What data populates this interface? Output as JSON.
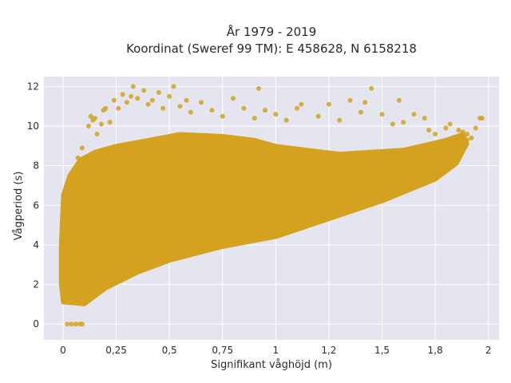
{
  "chart_data": {
    "type": "scatter",
    "title_line1": "År 1979 - 2019",
    "title_line2": "Koordinat (Sweref 99 TM): E 458628, N 6158218",
    "xlabel": "Signifikant våghöjd (m)",
    "ylabel": "Vågperiod (s)",
    "xlim": [
      -0.09,
      2.05
    ],
    "ylim": [
      -0.8,
      12.5
    ],
    "xticks": [
      0,
      0.25,
      0.5,
      0.75,
      1,
      1.25,
      1.5,
      1.75,
      2
    ],
    "xtick_labels": [
      "0",
      "0,25",
      "0,5",
      "0,75",
      "1",
      "1,2",
      "1,5",
      "1,8",
      "2"
    ],
    "yticks": [
      0,
      2,
      4,
      6,
      8,
      10,
      12
    ],
    "ytick_labels": [
      "0",
      "2",
      "4",
      "6",
      "8",
      "10",
      "12"
    ],
    "grid": true,
    "legend": "none",
    "marker_color": "#d4a21f",
    "plot_background": "#e5e5ef",
    "points": [
      [
        0.02,
        0
      ],
      [
        0.04,
        0
      ],
      [
        0.06,
        0
      ],
      [
        0.08,
        0
      ],
      [
        0.09,
        0
      ],
      [
        0.02,
        1.8
      ],
      [
        0.02,
        2.4
      ],
      [
        0.02,
        3.0
      ],
      [
        0.03,
        2.7
      ],
      [
        0.05,
        1.2
      ],
      [
        0.06,
        1.6
      ],
      [
        0.08,
        1.1
      ],
      [
        0.1,
        1.4
      ],
      [
        0.12,
        1.9
      ],
      [
        0.05,
        7.5
      ],
      [
        0.07,
        8.4
      ],
      [
        0.08,
        7.9
      ],
      [
        0.09,
        8.9
      ],
      [
        0.1,
        8.2
      ],
      [
        0.12,
        10.0
      ],
      [
        0.13,
        10.5
      ],
      [
        0.14,
        10.3
      ],
      [
        0.15,
        10.4
      ],
      [
        0.16,
        9.6
      ],
      [
        0.18,
        10.1
      ],
      [
        0.19,
        10.8
      ],
      [
        0.2,
        10.9
      ],
      [
        0.22,
        10.2
      ],
      [
        0.24,
        11.3
      ],
      [
        0.26,
        10.9
      ],
      [
        0.28,
        11.6
      ],
      [
        0.3,
        11.2
      ],
      [
        0.32,
        11.5
      ],
      [
        0.33,
        12.0
      ],
      [
        0.35,
        11.4
      ],
      [
        0.38,
        11.8
      ],
      [
        0.4,
        11.1
      ],
      [
        0.42,
        11.3
      ],
      [
        0.45,
        11.7
      ],
      [
        0.47,
        10.9
      ],
      [
        0.5,
        11.5
      ],
      [
        0.52,
        12.0
      ],
      [
        0.55,
        11.0
      ],
      [
        0.58,
        11.3
      ],
      [
        0.6,
        10.7
      ],
      [
        0.65,
        11.2
      ],
      [
        0.7,
        10.8
      ],
      [
        0.75,
        10.5
      ],
      [
        0.8,
        11.4
      ],
      [
        0.85,
        10.9
      ],
      [
        0.9,
        10.4
      ],
      [
        0.95,
        10.8
      ],
      [
        0.92,
        11.9
      ],
      [
        1.0,
        10.6
      ],
      [
        1.05,
        10.3
      ],
      [
        1.1,
        10.9
      ],
      [
        1.12,
        11.1
      ],
      [
        1.2,
        10.5
      ],
      [
        1.25,
        11.1
      ],
      [
        1.3,
        10.3
      ],
      [
        1.35,
        11.3
      ],
      [
        1.4,
        10.7
      ],
      [
        1.42,
        11.2
      ],
      [
        1.45,
        11.9
      ],
      [
        1.5,
        10.6
      ],
      [
        1.55,
        10.1
      ],
      [
        1.58,
        11.3
      ],
      [
        1.6,
        10.2
      ],
      [
        1.65,
        10.6
      ],
      [
        1.7,
        10.4
      ],
      [
        1.72,
        9.8
      ],
      [
        1.75,
        9.6
      ],
      [
        1.8,
        9.9
      ],
      [
        1.82,
        10.1
      ],
      [
        1.86,
        9.8
      ],
      [
        1.88,
        9.7
      ],
      [
        1.9,
        9.6
      ],
      [
        1.92,
        9.4
      ],
      [
        1.94,
        9.9
      ],
      [
        1.96,
        10.4
      ],
      [
        1.97,
        10.4
      ],
      [
        1.8,
        8.2
      ],
      [
        1.82,
        8.6
      ],
      [
        1.85,
        8.9
      ],
      [
        1.88,
        9.2
      ],
      [
        1.9,
        9.3
      ],
      [
        1.87,
        8.8
      ],
      [
        1.84,
        9.0
      ]
    ]
  }
}
